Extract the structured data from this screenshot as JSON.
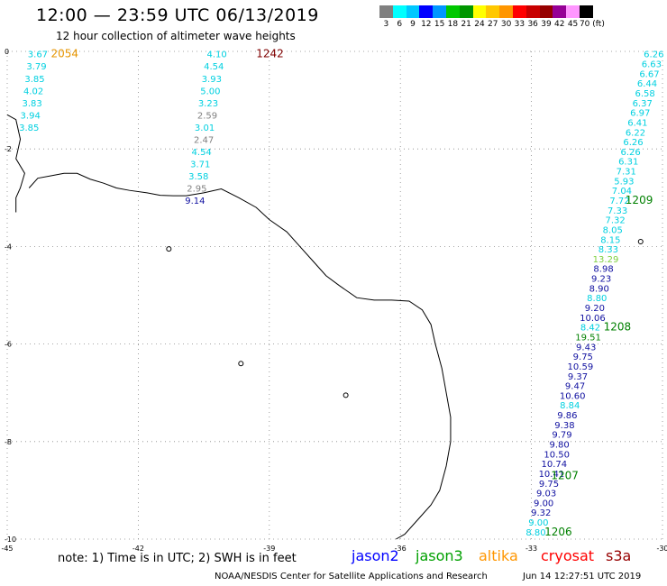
{
  "title": "12:00 — 23:59 UTC 06/13/2019",
  "subtitle": "12 hour collection of altimeter wave heights",
  "colorbar": {
    "colors": [
      "#808080",
      "#00ffff",
      "#00c8ff",
      "#0000ff",
      "#0096ff",
      "#00c800",
      "#009600",
      "#ffff00",
      "#ffc800",
      "#ff9600",
      "#ff0000",
      "#c80000",
      "#960000",
      "#960096",
      "#ff96ff",
      "#000000"
    ],
    "labels": [
      "",
      "3",
      "6",
      "9",
      "12",
      "15",
      "18",
      "21",
      "24",
      "27",
      "30",
      "33",
      "36",
      "39",
      "42",
      "45",
      "70 (ft)"
    ]
  },
  "axes": {
    "x_ticks": [
      -45,
      -42,
      -39,
      -36,
      -33,
      -30
    ],
    "y_ticks": [
      0,
      -2,
      -4,
      -6,
      -8,
      -10
    ]
  },
  "tracks": [
    {
      "sat": "cryosat",
      "id": "2054",
      "id_color": "#e69500",
      "id_lat": -0.05,
      "id_lon": -44.0,
      "pts": [
        [
          -44.3,
          -0.05,
          "3.67",
          "#00d0e0"
        ],
        [
          -44.33,
          -0.3,
          "3.79",
          "#00d0e0"
        ],
        [
          -44.37,
          -0.55,
          "3.85",
          "#00d0e0"
        ],
        [
          -44.4,
          -0.8,
          "4.02",
          "#00d0e0"
        ],
        [
          -44.43,
          -1.05,
          "3.83",
          "#00d0e0"
        ],
        [
          -44.47,
          -1.3,
          "3.94",
          "#00d0e0"
        ],
        [
          -44.5,
          -1.55,
          "3.85",
          "#00d0e0"
        ]
      ]
    },
    {
      "sat": "cryosat",
      "id": "1242",
      "id_color": "#800000",
      "id_lat": -0.05,
      "id_lon": -39.3,
      "pts": [
        [
          -40.2,
          -0.05,
          "4.10",
          "#00d0e0"
        ],
        [
          -40.27,
          -0.3,
          "4.54",
          "#00d0e0"
        ],
        [
          -40.32,
          -0.55,
          "3.93",
          "#00d0e0"
        ],
        [
          -40.35,
          -0.8,
          "5.00",
          "#00d0e0"
        ],
        [
          -40.4,
          -1.05,
          "3.23",
          "#00d0e0"
        ],
        [
          -40.42,
          -1.3,
          "2.59",
          "#808080"
        ],
        [
          -40.48,
          -1.55,
          "3.01",
          "#00d0e0"
        ],
        [
          -40.5,
          -1.8,
          "2.47",
          "#808080"
        ],
        [
          -40.55,
          -2.05,
          "4.54",
          "#00d0e0"
        ],
        [
          -40.58,
          -2.3,
          "3.71",
          "#00d0e0"
        ],
        [
          -40.62,
          -2.55,
          "3.58",
          "#00d0e0"
        ],
        [
          -40.66,
          -2.8,
          "2.95",
          "#808080"
        ],
        [
          -40.7,
          -3.05,
          "9.14",
          "#1010a0"
        ]
      ]
    },
    {
      "sat": "jason3",
      "id": "1209",
      "id_color": "#008000",
      "id_lat": -3.05,
      "id_lon": -30.85,
      "pts": [
        [
          -30.2,
          -0.05,
          "6.26",
          "#00d0e0"
        ],
        [
          -30.25,
          -0.25,
          "6.63",
          "#00d0e0"
        ],
        [
          -30.3,
          -0.45,
          "6.67",
          "#00d0e0"
        ],
        [
          -30.35,
          -0.65,
          "6.44",
          "#00d0e0"
        ],
        [
          -30.4,
          -0.85,
          "6.58",
          "#00d0e0"
        ],
        [
          -30.46,
          -1.05,
          "6.37",
          "#00d0e0"
        ],
        [
          -30.51,
          -1.25,
          "6.97",
          "#00d0e0"
        ],
        [
          -30.57,
          -1.45,
          "6.41",
          "#00d0e0"
        ],
        [
          -30.62,
          -1.65,
          "6.22",
          "#00d0e0"
        ],
        [
          -30.67,
          -1.85,
          "6.26",
          "#00d0e0"
        ],
        [
          -30.73,
          -2.05,
          "6.26",
          "#00d0e0"
        ],
        [
          -30.78,
          -2.25,
          "6.31",
          "#00d0e0"
        ],
        [
          -30.83,
          -2.45,
          "7.31",
          "#00d0e0"
        ],
        [
          -30.88,
          -2.65,
          "5.93",
          "#00d0e0"
        ],
        [
          -30.93,
          -2.85,
          "7.04",
          "#00d0e0"
        ],
        [
          -30.98,
          -3.05,
          "7.72",
          "#00d0e0"
        ],
        [
          -31.03,
          -3.25,
          "7.33",
          "#00d0e0"
        ],
        [
          -31.08,
          -3.45,
          "7.32",
          "#00d0e0"
        ],
        [
          -31.14,
          -3.65,
          "8.05",
          "#00d0e0"
        ],
        [
          -31.19,
          -3.85,
          "8.15",
          "#00d0e0"
        ],
        [
          -31.24,
          -4.05,
          "8.33",
          "#00d0e0"
        ],
        [
          -31.3,
          -4.25,
          "13.29",
          "#80d040"
        ],
        [
          -31.35,
          -4.45,
          "8.98",
          "#1010a0"
        ],
        [
          -31.4,
          -4.65,
          "9.23",
          "#1010a0"
        ],
        [
          -31.45,
          -4.85,
          "8.90",
          "#1010a0"
        ],
        [
          -31.5,
          -5.05,
          "8.80",
          "#00d0e0"
        ],
        [
          -31.55,
          -5.25,
          "9.20",
          "#1010a0"
        ],
        [
          -31.6,
          -5.45,
          "10.06",
          "#1010a0"
        ],
        [
          -31.65,
          -5.65,
          "8.42",
          "#00d0e0"
        ],
        [
          -31.7,
          -5.85,
          "19.51",
          "#008000"
        ]
      ]
    },
    {
      "sat": "jason3",
      "id": "1208",
      "id_color": "#008000",
      "id_lat": -5.65,
      "id_lon": -31.35,
      "pts": []
    },
    {
      "sat": "jason3",
      "id": "1207",
      "id_color": "#008000",
      "id_lat": -8.7,
      "id_lon": -32.55,
      "pts": [
        [
          -31.75,
          -6.05,
          "9.43",
          "#1010a0"
        ],
        [
          -31.82,
          -6.25,
          "9.75",
          "#1010a0"
        ],
        [
          -31.88,
          -6.45,
          "10.59",
          "#1010a0"
        ],
        [
          -31.94,
          -6.65,
          "9.37",
          "#1010a0"
        ],
        [
          -32.0,
          -6.85,
          "9.47",
          "#1010a0"
        ],
        [
          -32.06,
          -7.05,
          "10.60",
          "#1010a0"
        ],
        [
          -32.12,
          -7.25,
          "8.84",
          "#00d0e0"
        ],
        [
          -32.18,
          -7.45,
          "9.86",
          "#1010a0"
        ],
        [
          -32.24,
          -7.65,
          "9.38",
          "#1010a0"
        ],
        [
          -32.3,
          -7.85,
          "9.79",
          "#1010a0"
        ],
        [
          -32.36,
          -8.05,
          "9.80",
          "#1010a0"
        ],
        [
          -32.42,
          -8.25,
          "10.50",
          "#1010a0"
        ],
        [
          -32.48,
          -8.45,
          "10.74",
          "#1010a0"
        ],
        [
          -32.54,
          -8.65,
          "10.41",
          "#1010a0"
        ],
        [
          -32.6,
          -8.85,
          "9.75",
          "#1010a0"
        ],
        [
          -32.66,
          -9.05,
          "9.03",
          "#1010a0"
        ],
        [
          -32.72,
          -9.25,
          "9.00",
          "#1010a0"
        ],
        [
          -32.78,
          -9.45,
          "9.32",
          "#1010a0"
        ],
        [
          -32.84,
          -9.65,
          "9.00",
          "#00d0e0"
        ],
        [
          -32.9,
          -9.85,
          "8.80",
          "#00d0e0"
        ]
      ]
    },
    {
      "sat": "jason3",
      "id": "1206",
      "id_color": "#008000",
      "id_lat": -9.85,
      "id_lon": -32.7,
      "pts": []
    }
  ],
  "note": "note: 1) Time is in UTC; 2) SWH is in feet",
  "sats": [
    {
      "name": "jason2",
      "color": "#0000ff"
    },
    {
      "name": "jason3",
      "color": "#00a000"
    },
    {
      "name": "altika",
      "color": "#ff9600"
    },
    {
      "name": "cryosat",
      "color": "#ff0000"
    },
    {
      "name": "s3a",
      "color": "#960000"
    }
  ],
  "credit": "NOAA/NESDIS Center for Satellite Applications and Research",
  "timestamp": "Jun 14 12:27:51 UTC 2019"
}
